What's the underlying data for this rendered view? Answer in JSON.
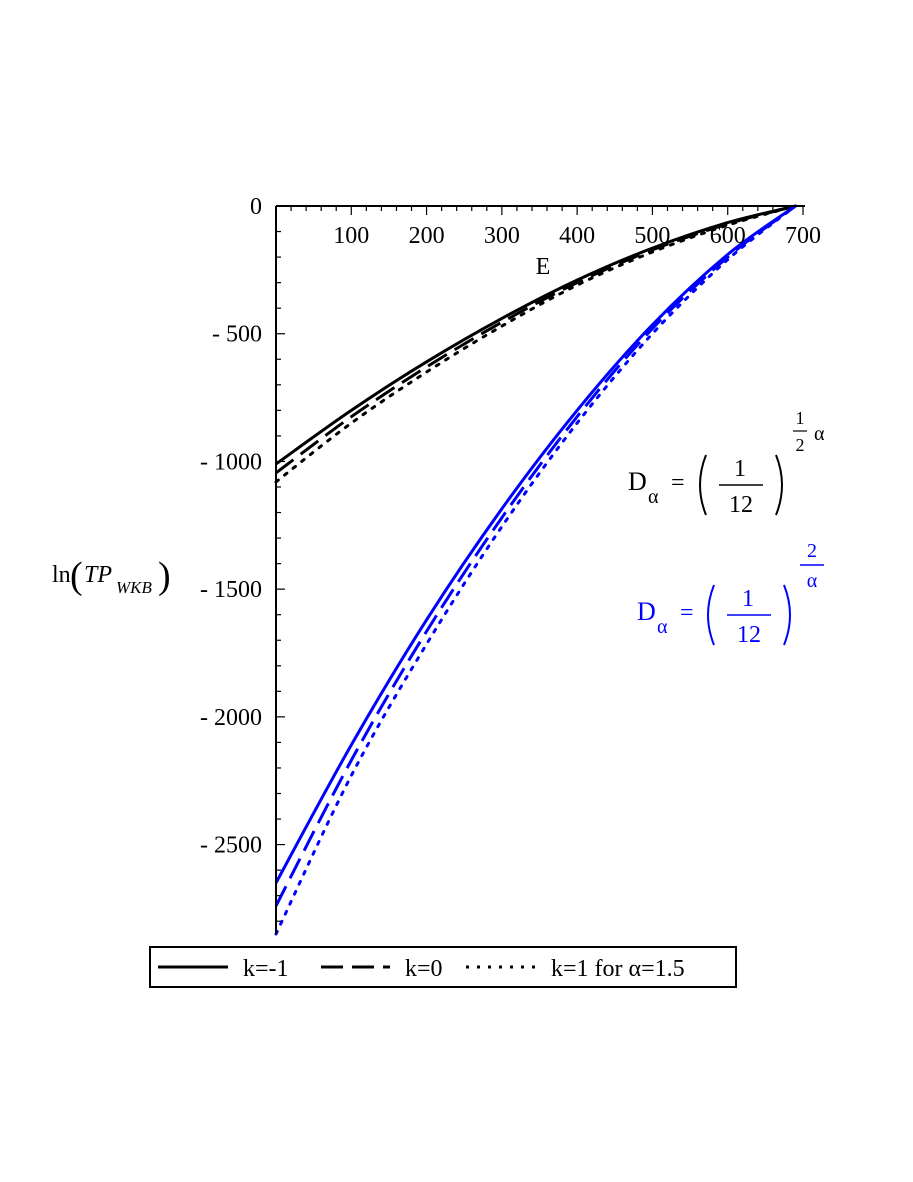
{
  "chart_data": {
    "type": "line",
    "xlabel": "E",
    "ylabel": {
      "prefix": "ln",
      "main": "TP",
      "subscript": "WKB"
    },
    "xlim": [
      0,
      700
    ],
    "ylim": [
      -2850,
      0
    ],
    "x_ticks": [
      100,
      200,
      300,
      400,
      500,
      600,
      700
    ],
    "y_ticks": [
      0,
      -500,
      -1000,
      -1500,
      -2000,
      -2500
    ],
    "x_tick_labels": [
      "100",
      "200",
      "300",
      "400",
      "500",
      "600",
      "700"
    ],
    "y_tick_labels": [
      "0",
      "- 500",
      "- 1000",
      "- 1500",
      "- 2000",
      "- 2500"
    ],
    "colors": {
      "group1": "#000000",
      "group2": "#0000ff"
    },
    "series": [
      {
        "group": "group1",
        "style": "solid",
        "x": [
          0,
          100,
          200,
          300,
          400,
          500,
          600,
          690
        ],
        "y": [
          -1010,
          -800,
          -610,
          -440,
          -290,
          -165,
          -65,
          0
        ]
      },
      {
        "group": "group1",
        "style": "dashed",
        "x": [
          0,
          100,
          200,
          300,
          400,
          500,
          600,
          690
        ],
        "y": [
          -1045,
          -825,
          -630,
          -455,
          -300,
          -172,
          -70,
          0
        ]
      },
      {
        "group": "group1",
        "style": "dotted",
        "x": [
          0,
          100,
          200,
          300,
          400,
          500,
          600,
          690
        ],
        "y": [
          -1080,
          -850,
          -650,
          -470,
          -310,
          -180,
          -75,
          0
        ]
      },
      {
        "group": "group2",
        "style": "solid",
        "x": [
          0,
          100,
          200,
          300,
          400,
          500,
          600,
          690
        ],
        "y": [
          -2650,
          -2110,
          -1620,
          -1185,
          -800,
          -465,
          -190,
          0
        ]
      },
      {
        "group": "group2",
        "style": "dashed",
        "x": [
          0,
          100,
          200,
          300,
          400,
          500,
          600,
          690
        ],
        "y": [
          -2740,
          -2170,
          -1665,
          -1220,
          -825,
          -480,
          -200,
          0
        ]
      },
      {
        "group": "group2",
        "style": "dotted",
        "x": [
          0,
          100,
          200,
          300,
          400,
          500,
          600,
          690
        ],
        "y": [
          -2850,
          -2230,
          -1715,
          -1255,
          -850,
          -500,
          -210,
          0
        ]
      }
    ],
    "annotations": [
      {
        "group": "group1",
        "base": "D",
        "sub": "α",
        "eq": "=",
        "num": "1",
        "den": "12",
        "exp_num": "1",
        "exp_den": "2",
        "exp_tail": "α"
      },
      {
        "group": "group2",
        "base": "D",
        "sub": "α",
        "eq": "=",
        "num": "1",
        "den": "12",
        "exp_num": "2",
        "exp_den": "α"
      }
    ],
    "legend": {
      "placement": "bottom",
      "entries": [
        {
          "style": "solid",
          "label": "k=-1"
        },
        {
          "style": "dashed",
          "label": "k=0"
        },
        {
          "style": "dotted",
          "label": "k=1 for α=1.5"
        }
      ]
    }
  }
}
